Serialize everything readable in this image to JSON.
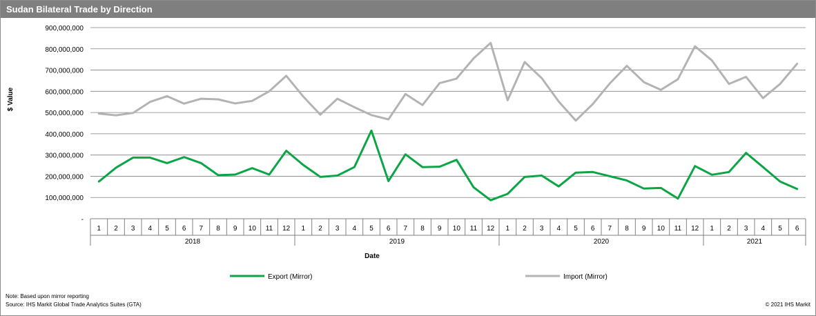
{
  "header": {
    "title": "Sudan Bilateral Trade by Direction"
  },
  "footer": {
    "note": "Note: Based upon mirror reporting",
    "source": "Source: IHS Markit Global Trade Analytics Suites (GTA)",
    "copyright": "© 2021 IHS Markit"
  },
  "chart_data": {
    "type": "line",
    "title": "Sudan Bilateral Trade by Direction",
    "xlabel": "Date",
    "ylabel": "$ Value",
    "ylim": [
      0,
      900000000
    ],
    "yticks": [
      "-",
      "100,000,000",
      "200,000,000",
      "300,000,000",
      "400,000,000",
      "500,000,000",
      "600,000,000",
      "700,000,000",
      "800,000,000",
      "900,000,000"
    ],
    "grid": true,
    "legend_position": "bottom",
    "years": [
      {
        "label": "2018",
        "months": [
          "1",
          "2",
          "3",
          "4",
          "5",
          "6",
          "7",
          "8",
          "9",
          "10",
          "11",
          "12"
        ]
      },
      {
        "label": "2019",
        "months": [
          "1",
          "2",
          "3",
          "4",
          "5",
          "6",
          "7",
          "8",
          "9",
          "10",
          "11",
          "12"
        ]
      },
      {
        "label": "2020",
        "months": [
          "1",
          "2",
          "3",
          "4",
          "5",
          "6",
          "7",
          "8",
          "9",
          "10",
          "11",
          "12"
        ]
      },
      {
        "label": "2021",
        "months": [
          "1",
          "2",
          "3",
          "4",
          "5",
          "6"
        ]
      }
    ],
    "series": [
      {
        "name": "Export (Mirror)",
        "color": "#0aa544",
        "values": [
          175000000,
          240000000,
          288000000,
          288000000,
          262000000,
          290000000,
          262000000,
          205000000,
          208000000,
          238000000,
          208000000,
          320000000,
          253000000,
          197000000,
          203000000,
          243000000,
          415000000,
          177000000,
          303000000,
          243000000,
          245000000,
          277000000,
          148000000,
          87000000,
          117000000,
          197000000,
          203000000,
          152000000,
          217000000,
          220000000,
          200000000,
          180000000,
          142000000,
          145000000,
          95000000,
          248000000,
          207000000,
          220000000,
          310000000,
          243000000,
          175000000,
          140000000
        ]
      },
      {
        "name": "Import (Mirror)",
        "color": "#b3b3b3",
        "values": [
          495000000,
          487000000,
          498000000,
          550000000,
          577000000,
          542000000,
          565000000,
          562000000,
          543000000,
          555000000,
          600000000,
          673000000,
          575000000,
          490000000,
          565000000,
          525000000,
          488000000,
          468000000,
          587000000,
          535000000,
          638000000,
          660000000,
          755000000,
          828000000,
          558000000,
          738000000,
          662000000,
          552000000,
          462000000,
          540000000,
          637000000,
          720000000,
          643000000,
          607000000,
          657000000,
          812000000,
          745000000,
          635000000,
          668000000,
          568000000,
          635000000,
          730000000
        ]
      }
    ]
  }
}
